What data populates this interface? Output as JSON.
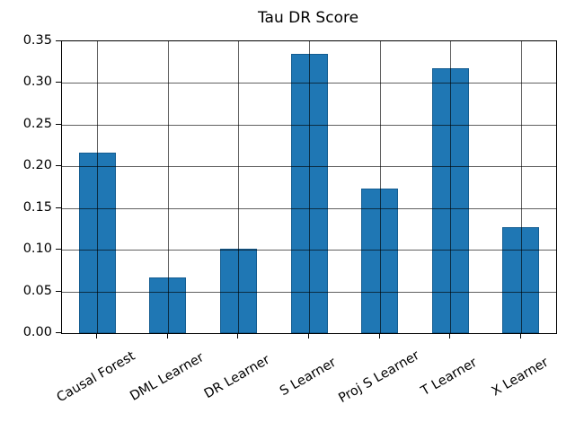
{
  "chart_data": {
    "type": "bar",
    "title": "Tau DR Score",
    "categories": [
      "Causal Forest",
      "DML Learner",
      "DR Learner",
      "S Learner",
      "Proj S Learner",
      "T Learner",
      "X Learner"
    ],
    "values": [
      0.217,
      0.067,
      0.101,
      0.335,
      0.173,
      0.318,
      0.127
    ],
    "xlabel": "",
    "ylabel": "",
    "ylim": [
      0.0,
      0.35
    ],
    "ytick_step": 0.05,
    "ytick_labels": [
      "0.00",
      "0.05",
      "0.10",
      "0.15",
      "0.20",
      "0.25",
      "0.30",
      "0.35"
    ],
    "grid": true,
    "legend": "none",
    "x_tick_rotation_deg": 30,
    "bar_color": "#1f77b4",
    "bar_edge_color": "#0d4d79",
    "grid_color": "#5e5e5e",
    "axis_color": "#000000",
    "background_color": "#ffffff"
  }
}
